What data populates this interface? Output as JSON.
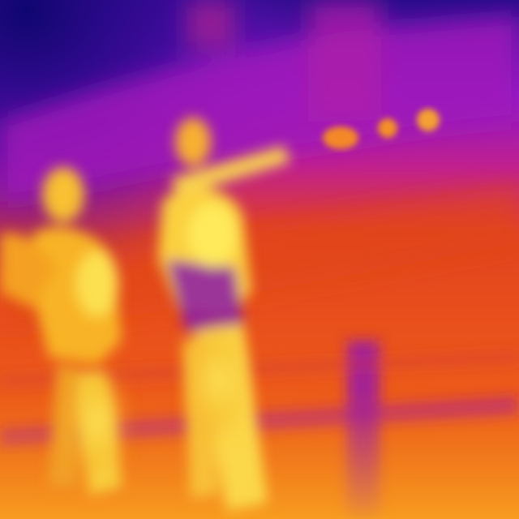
{
  "image": {
    "kind": "thermal-infrared-photo",
    "palette": {
      "cold": "#1a0a7a",
      "cool": "#7a10c8",
      "mid": "#c020a8",
      "warm": "#e8501c",
      "hot": "#f8a020",
      "hottest": "#fff060"
    },
    "subjects": [
      "person-left",
      "person-center",
      "railing-post"
    ]
  }
}
